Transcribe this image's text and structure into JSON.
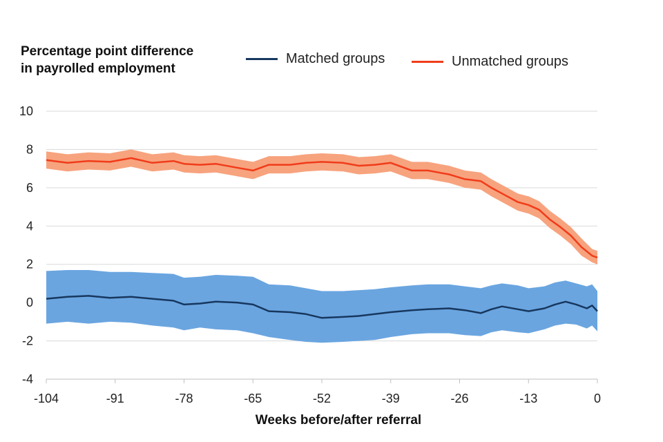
{
  "chart_data": {
    "type": "line",
    "title": "",
    "ylabel": "Percentage point difference\nin payrolled employment",
    "xlabel": "Weeks before/after referral",
    "xlim": [
      -104,
      0
    ],
    "ylim": [
      -4,
      10
    ],
    "x_ticks": [
      -104,
      -91,
      -78,
      -65,
      -52,
      -39,
      -26,
      -13,
      0
    ],
    "y_ticks": [
      -4,
      -2,
      0,
      2,
      4,
      6,
      8,
      10
    ],
    "grid": "horizontal",
    "legend_position": "top",
    "series": [
      {
        "name": "Matched groups",
        "color": "#17375e",
        "band_color": "#6aa5e0",
        "x": [
          -104,
          -100,
          -96,
          -92,
          -88,
          -84,
          -80,
          -78,
          -75,
          -72,
          -68,
          -65,
          -62,
          -58,
          -55,
          -52,
          -48,
          -45,
          -42,
          -39,
          -35,
          -32,
          -28,
          -25,
          -22,
          -20,
          -18,
          -15,
          -13,
          -10,
          -8,
          -6,
          -4,
          -2,
          -1,
          0
        ],
        "values": [
          0.2,
          0.3,
          0.35,
          0.25,
          0.3,
          0.2,
          0.1,
          -0.1,
          -0.05,
          0.05,
          0.0,
          -0.1,
          -0.45,
          -0.5,
          -0.6,
          -0.8,
          -0.75,
          -0.7,
          -0.6,
          -0.5,
          -0.4,
          -0.35,
          -0.3,
          -0.4,
          -0.55,
          -0.35,
          -0.2,
          -0.35,
          -0.45,
          -0.3,
          -0.1,
          0.05,
          -0.1,
          -0.3,
          -0.15,
          -0.45
        ],
        "lower": [
          -1.1,
          -1.0,
          -1.1,
          -1.0,
          -1.05,
          -1.2,
          -1.3,
          -1.45,
          -1.3,
          -1.4,
          -1.45,
          -1.6,
          -1.8,
          -1.95,
          -2.05,
          -2.1,
          -2.05,
          -2.0,
          -1.95,
          -1.8,
          -1.65,
          -1.6,
          -1.6,
          -1.7,
          -1.75,
          -1.55,
          -1.45,
          -1.55,
          -1.6,
          -1.4,
          -1.2,
          -1.1,
          -1.15,
          -1.35,
          -1.2,
          -1.5
        ],
        "upper": [
          1.65,
          1.7,
          1.7,
          1.6,
          1.6,
          1.55,
          1.5,
          1.3,
          1.35,
          1.45,
          1.4,
          1.35,
          0.95,
          0.9,
          0.75,
          0.6,
          0.6,
          0.65,
          0.7,
          0.8,
          0.9,
          0.95,
          0.95,
          0.85,
          0.75,
          0.9,
          1.0,
          0.9,
          0.75,
          0.85,
          1.05,
          1.15,
          1.0,
          0.85,
          0.95,
          0.6
        ]
      },
      {
        "name": "Unmatched groups",
        "color": "#f03c1a",
        "band_color": "#f7a37e",
        "x": [
          -104,
          -100,
          -96,
          -92,
          -88,
          -84,
          -80,
          -78,
          -75,
          -72,
          -68,
          -65,
          -62,
          -58,
          -55,
          -52,
          -48,
          -45,
          -42,
          -39,
          -35,
          -32,
          -28,
          -25,
          -22,
          -20,
          -18,
          -15,
          -13,
          -11,
          -9,
          -7,
          -5,
          -3,
          -1,
          0
        ],
        "values": [
          7.45,
          7.3,
          7.4,
          7.35,
          7.55,
          7.3,
          7.4,
          7.25,
          7.2,
          7.25,
          7.05,
          6.9,
          7.2,
          7.2,
          7.3,
          7.35,
          7.3,
          7.15,
          7.2,
          7.3,
          6.9,
          6.9,
          6.7,
          6.45,
          6.35,
          6.0,
          5.7,
          5.25,
          5.1,
          4.85,
          4.35,
          3.95,
          3.5,
          2.9,
          2.45,
          2.35
        ],
        "lower": [
          7.0,
          6.85,
          6.95,
          6.9,
          7.1,
          6.85,
          6.95,
          6.8,
          6.75,
          6.8,
          6.6,
          6.45,
          6.75,
          6.75,
          6.85,
          6.9,
          6.85,
          6.7,
          6.75,
          6.85,
          6.45,
          6.45,
          6.25,
          6.0,
          5.9,
          5.55,
          5.25,
          4.8,
          4.65,
          4.4,
          3.9,
          3.5,
          3.05,
          2.45,
          2.1,
          2.0
        ],
        "upper": [
          7.9,
          7.75,
          7.85,
          7.8,
          8.0,
          7.75,
          7.85,
          7.7,
          7.65,
          7.7,
          7.5,
          7.35,
          7.65,
          7.65,
          7.75,
          7.8,
          7.75,
          7.6,
          7.65,
          7.75,
          7.35,
          7.35,
          7.15,
          6.9,
          6.8,
          6.45,
          6.15,
          5.7,
          5.55,
          5.3,
          4.8,
          4.4,
          3.95,
          3.35,
          2.8,
          2.7
        ]
      }
    ]
  }
}
